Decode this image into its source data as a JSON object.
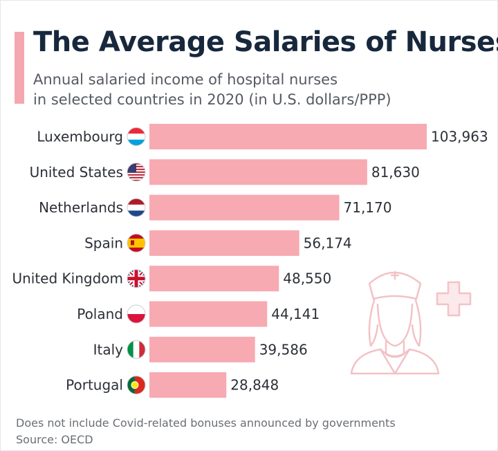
{
  "header": {
    "title": "The Average Salaries of Nurses",
    "subtitle_line1": "Annual salaried income of hospital nurses",
    "subtitle_line2": "in selected countries in 2020 (in U.S. dollars/PPP)"
  },
  "footer": {
    "note": "Does not include Covid-related bonuses announced by governments",
    "source": "Source: OECD"
  },
  "colors": {
    "bar": "#f7aab1",
    "accent": "#f4a7ae",
    "title": "#17283d",
    "illustration": "#f2c2c6"
  },
  "icons": [
    "nurse-illustration-icon",
    "medical-cross-icon"
  ],
  "chart_data": {
    "type": "bar",
    "orientation": "horizontal",
    "title": "The Average Salaries of Nurses",
    "subtitle": "Annual salaried income of hospital nurses in selected countries in 2020 (in U.S. dollars/PPP)",
    "categories": [
      "Luxembourg",
      "United States",
      "Netherlands",
      "Spain",
      "United Kingdom",
      "Poland",
      "Italy",
      "Portugal"
    ],
    "flags": [
      "flag-luxembourg-icon",
      "flag-united-states-icon",
      "flag-netherlands-icon",
      "flag-spain-icon",
      "flag-united-kingdom-icon",
      "flag-poland-icon",
      "flag-italy-icon",
      "flag-portugal-icon"
    ],
    "values": [
      103963,
      81630,
      71170,
      56174,
      48550,
      44141,
      39586,
      28848
    ],
    "value_labels": [
      "103,963",
      "81,630",
      "71,170",
      "56,174",
      "48,550",
      "44,141",
      "39,586",
      "28,848"
    ],
    "xlim": [
      0,
      103963
    ],
    "grid": false,
    "legend": "none"
  }
}
